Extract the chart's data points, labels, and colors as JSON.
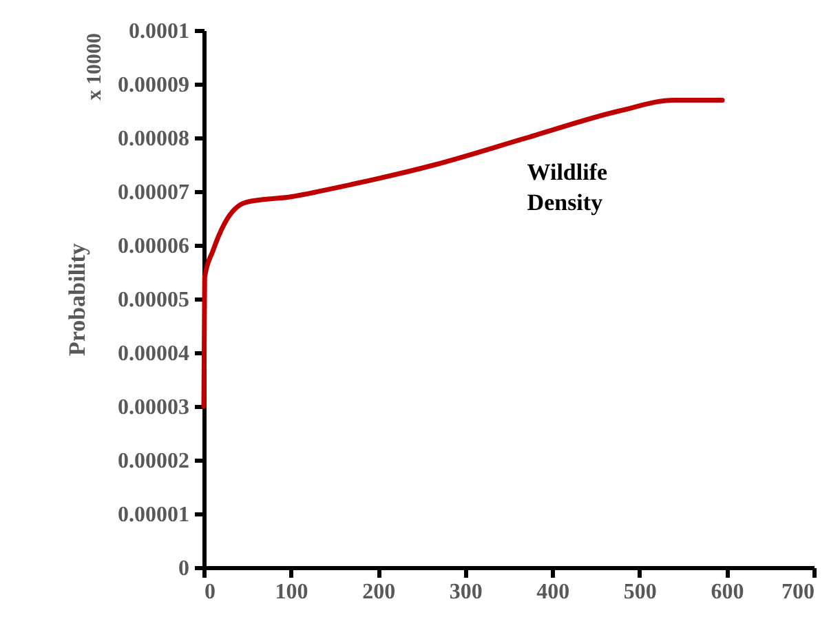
{
  "chart_data": {
    "type": "line",
    "ylabel": "Probability",
    "annotations": [
      "Wildlife\nDensity",
      "x 10000"
    ],
    "x": [
      0,
      1,
      10.6,
      23.7,
      49,
      100,
      161,
      266,
      371,
      477,
      540,
      595
    ],
    "series": [
      {
        "color": "#c00000",
        "values": [
          3e-05,
          5.4e-05,
          5.9e-05,
          6.4e-05,
          6.8e-05,
          6.9e-05,
          7.1e-05,
          7.5e-05,
          8e-05,
          8.5e-05,
          8.7e-05,
          8.7e-05
        ]
      }
    ],
    "xlim": [
      0,
      700
    ],
    "xticks": [
      0,
      100,
      200,
      300,
      400,
      500,
      600,
      700
    ],
    "ylim": [
      0,
      0.0001
    ],
    "yticks": [
      0,
      {
        "value": 1e-05,
        "label": "0.00001"
      },
      {
        "value": 2e-05,
        "label": "0.00002"
      },
      {
        "value": 3e-05,
        "label": "0.00003"
      },
      {
        "value": 4e-05,
        "label": "0.00004"
      },
      {
        "value": 5e-05,
        "label": "0.00005"
      },
      {
        "value": 6e-05,
        "label": "0.00006"
      },
      {
        "value": 7e-05,
        "label": "0.00007"
      },
      {
        "value": 8e-05,
        "label": "0.00008"
      },
      {
        "value": 9e-05,
        "label": "0.00009"
      },
      0.0001
    ],
    "grid": false,
    "marker": "none",
    "line_style": "solid"
  }
}
